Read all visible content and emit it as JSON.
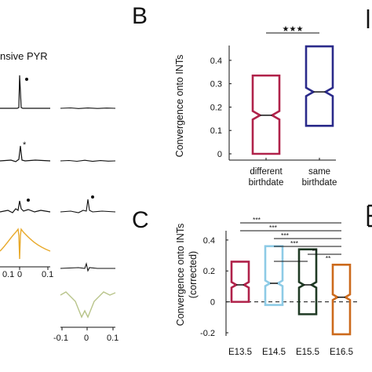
{
  "panel_labels": {
    "b": "B",
    "c": "C"
  },
  "left_panel": {
    "title_fragment": "nsive PYR",
    "x_ticks": [
      "-0.1",
      "0",
      "0.1"
    ],
    "x_ticks_partial": [
      "0.1",
      "0",
      "0.1"
    ],
    "colors": {
      "trace": "#111111",
      "orange": "#e8a92a",
      "olive": "#b8c48a"
    }
  },
  "chart_data": [
    {
      "type": "box",
      "panel": "B",
      "ylabel": "Convergence onto INTs",
      "ylim": [
        0,
        0.45
      ],
      "yticks": [
        0,
        0.1,
        0.2,
        0.3,
        0.4
      ],
      "ytick_labels": [
        "0",
        "0.1",
        "0.2",
        "0.3",
        "0.4"
      ],
      "significance": "★★★",
      "categories": [
        {
          "lines": [
            "different",
            "birthdate"
          ],
          "color": "#b0224a",
          "q1": 0.0,
          "median": 0.165,
          "q3": 0.335
        },
        {
          "lines": [
            "same",
            "birthdate"
          ],
          "color": "#2a2a8a",
          "q1": 0.12,
          "median": 0.265,
          "q3": 0.46
        }
      ]
    },
    {
      "type": "box",
      "panel": "C",
      "ylabel": "Convergence onto INTs",
      "ylabel2": "(corrected)",
      "ylim": [
        -0.2,
        0.45
      ],
      "yticks": [
        -0.2,
        0,
        0.2,
        0.4
      ],
      "ytick_labels": [
        "-0.2",
        "0",
        "0.2",
        "0.4"
      ],
      "categories": [
        {
          "label": "E13.5",
          "color": "#b0224a",
          "q1": 0.0,
          "median": 0.11,
          "q3": 0.26
        },
        {
          "label": "E14.5",
          "color": "#8ecbe6",
          "q1": -0.02,
          "median": 0.12,
          "q3": 0.36
        },
        {
          "label": "E15.5",
          "color": "#1f3a24",
          "q1": -0.08,
          "median": 0.11,
          "q3": 0.34
        },
        {
          "label": "E16.5",
          "color": "#cc6a1c",
          "q1": -0.21,
          "median": 0.03,
          "q3": 0.24
        }
      ],
      "significance_bars": [
        {
          "from": 0,
          "to": 3,
          "label": "***"
        },
        {
          "from": 0,
          "to": 3,
          "label": "***"
        },
        {
          "from": 1,
          "to": 3,
          "label": "***"
        },
        {
          "from": 1,
          "to": 2,
          "label": "***"
        },
        {
          "from": 2,
          "to": 3,
          "label": "**"
        },
        {
          "from": 1,
          "to": 2,
          "label": "**"
        }
      ]
    }
  ]
}
